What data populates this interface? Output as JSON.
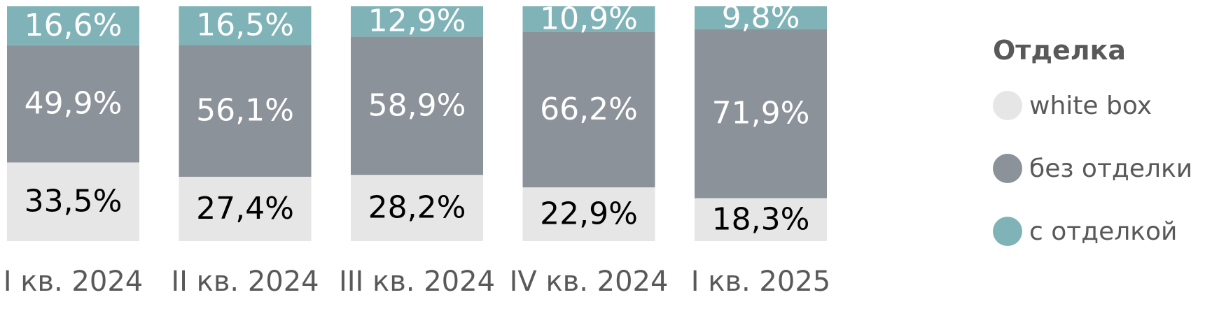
{
  "chart_data": {
    "type": "bar",
    "stacked": true,
    "percent_stacked": true,
    "categories": [
      "I кв. 2024",
      "II кв. 2024",
      "III кв. 2024",
      "IV кв. 2024",
      "I кв. 2025"
    ],
    "series": [
      {
        "name": "white box",
        "values": [
          33.5,
          27.4,
          28.2,
          22.9,
          18.3
        ],
        "labels": [
          "33,5%",
          "27,4%",
          "28,2%",
          "22,9%",
          "18,3%"
        ],
        "color": "#e6e6e6",
        "label_color": "#000000"
      },
      {
        "name": "без отделки",
        "values": [
          49.9,
          56.1,
          58.9,
          66.2,
          71.9
        ],
        "labels": [
          "49,9%",
          "56,1%",
          "58,9%",
          "66,2%",
          "71,9%"
        ],
        "color": "#8c9299",
        "label_color": "#ffffff"
      },
      {
        "name": "с отделкой",
        "values": [
          16.6,
          16.5,
          12.9,
          10.9,
          9.8
        ],
        "labels": [
          "16,6%",
          "16,5%",
          "12,9%",
          "10,9%",
          "9,8%"
        ],
        "color": "#80b3b7",
        "label_color": "#ffffff"
      }
    ],
    "legend": {
      "title": "Отделка",
      "position": "right"
    },
    "grid": false
  }
}
